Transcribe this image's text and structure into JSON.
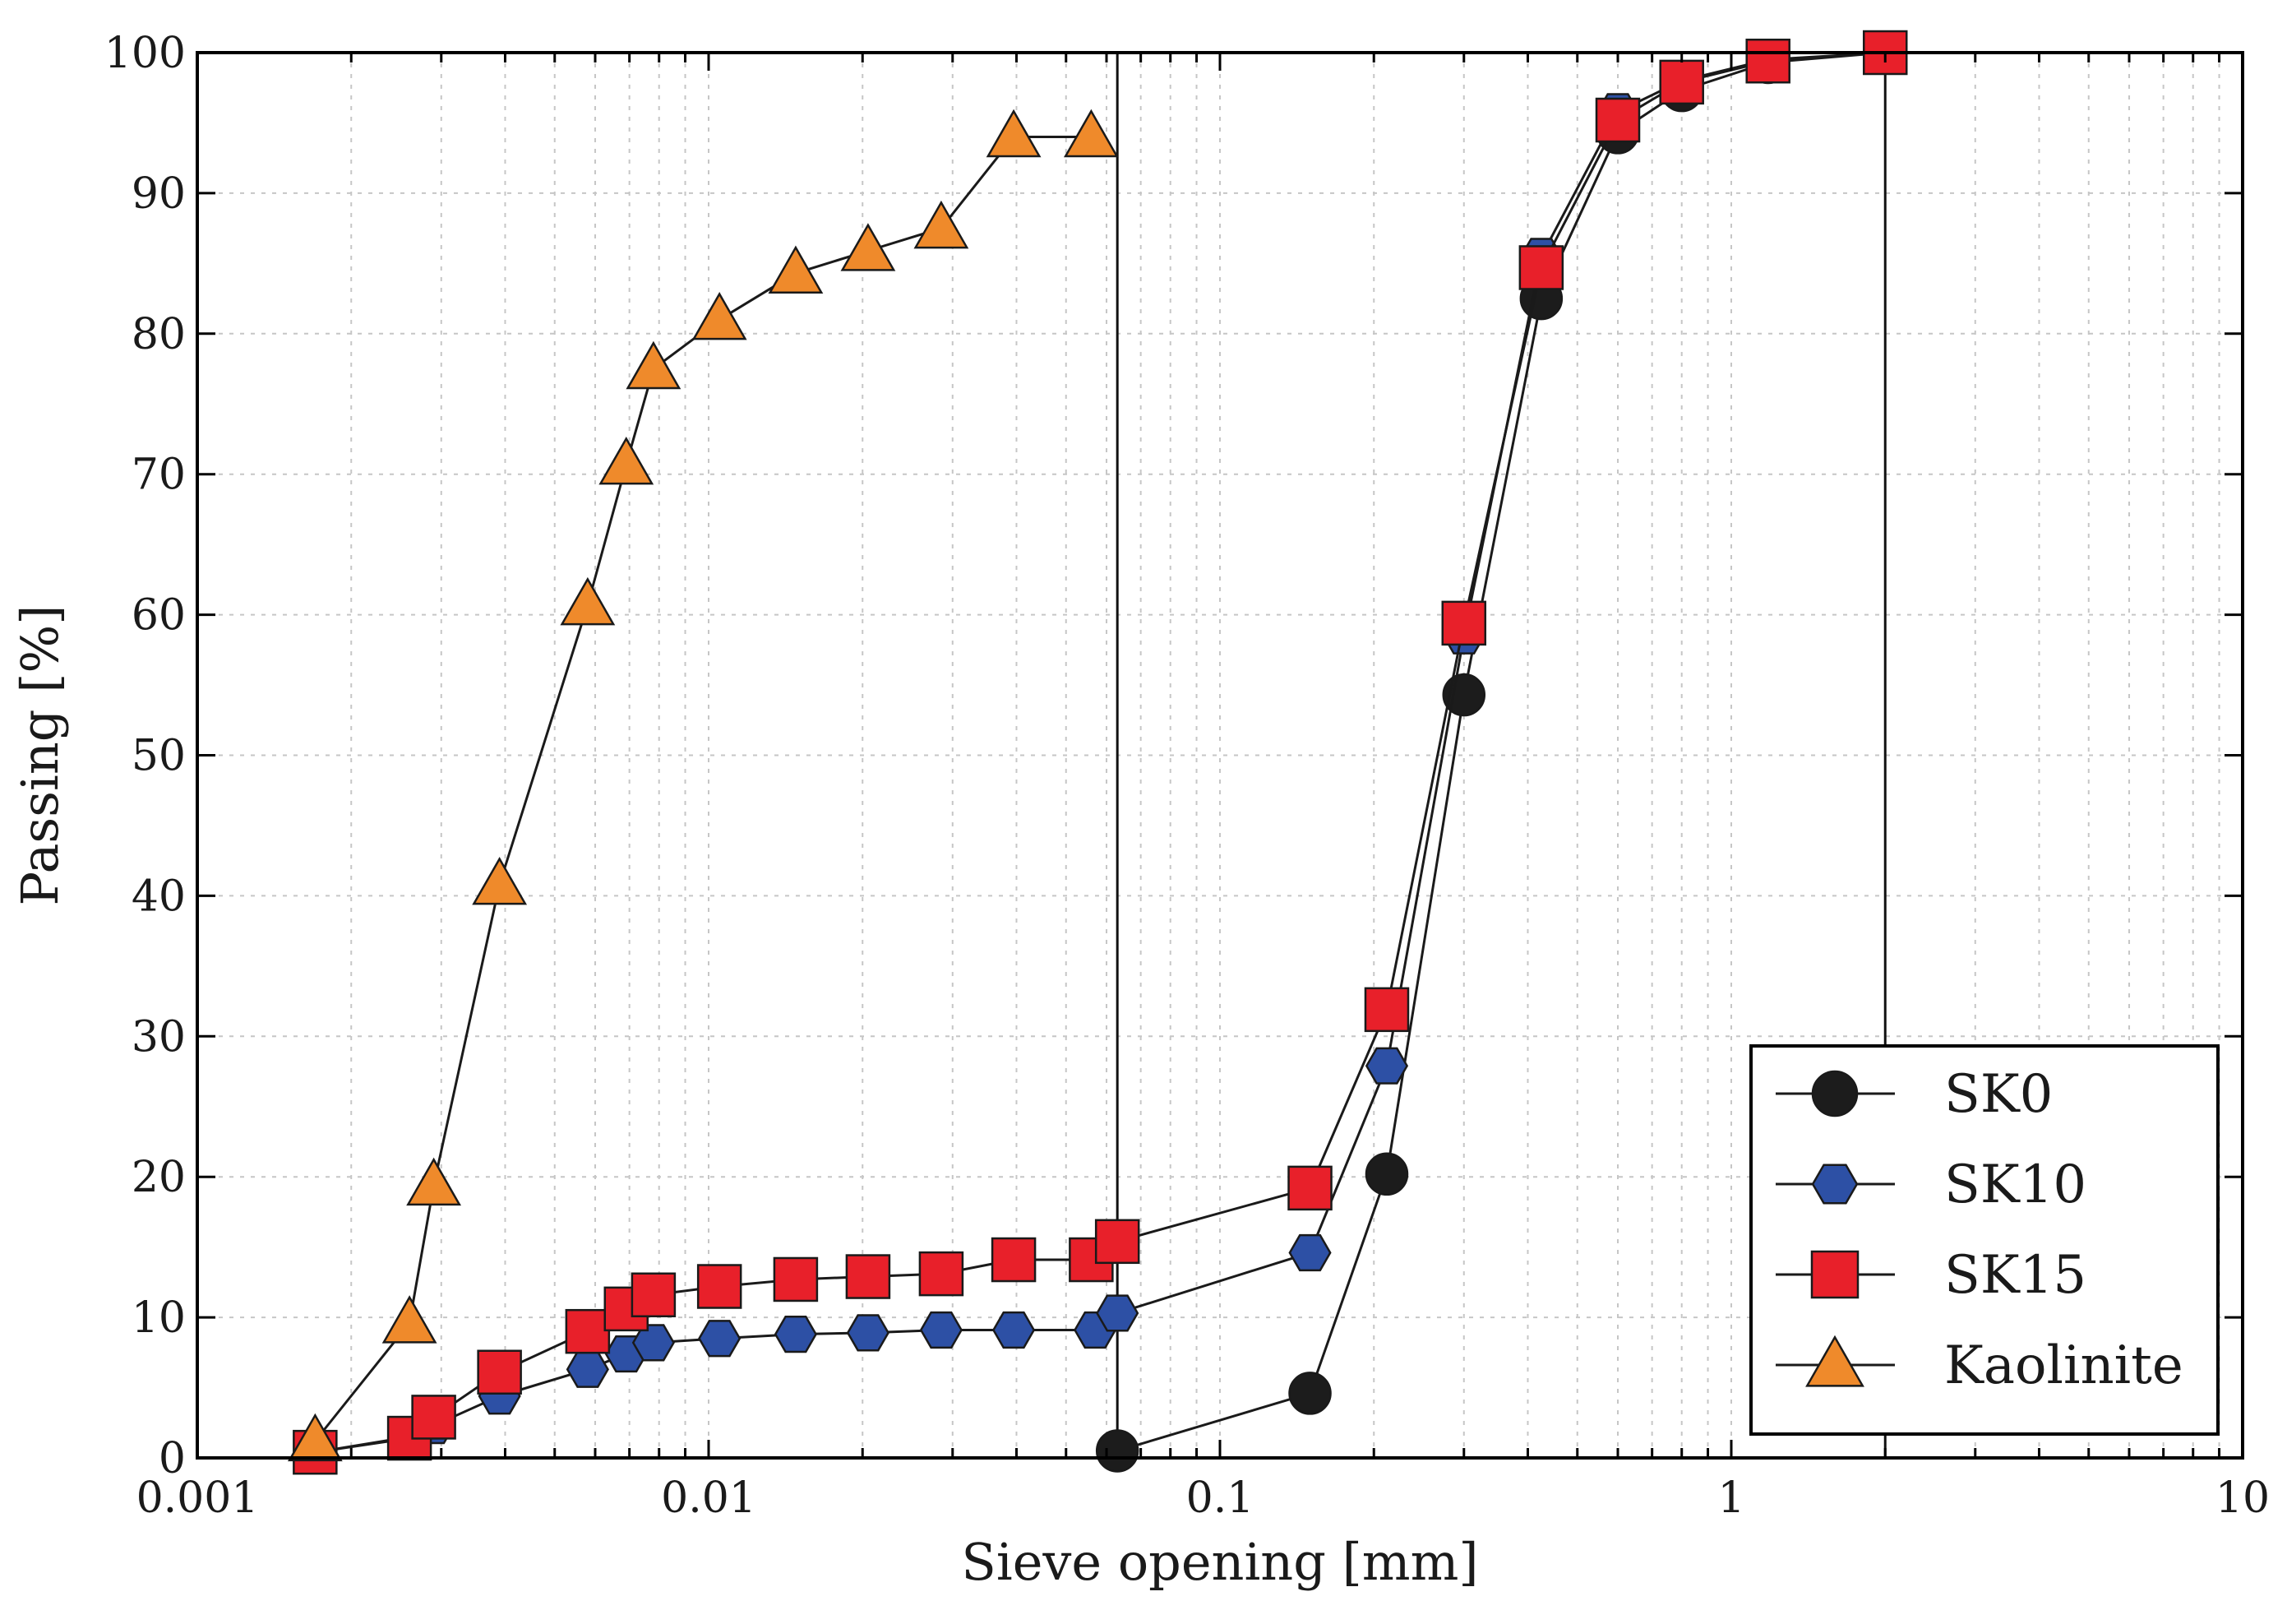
{
  "chart_data": {
    "type": "line",
    "xscale": "log",
    "xlabel": "Sieve opening [mm]",
    "ylabel": "Passing [%]",
    "xlim": [
      0.001,
      10
    ],
    "ylim": [
      0,
      100
    ],
    "grid": true,
    "x_ticks": [
      {
        "value": 0.001,
        "label": "0.001"
      },
      {
        "value": 0.01,
        "label": "0.01"
      },
      {
        "value": 0.1,
        "label": "0.1"
      },
      {
        "value": 1,
        "label": "1"
      },
      {
        "value": 10,
        "label": "10"
      }
    ],
    "y_ticks": [
      {
        "value": 0,
        "label": "0"
      },
      {
        "value": 10,
        "label": "10"
      },
      {
        "value": 20,
        "label": "20"
      },
      {
        "value": 30,
        "label": "30"
      },
      {
        "value": 40,
        "label": "40"
      },
      {
        "value": 50,
        "label": "50"
      },
      {
        "value": 60,
        "label": "60"
      },
      {
        "value": 70,
        "label": "70"
      },
      {
        "value": 80,
        "label": "80"
      },
      {
        "value": 90,
        "label": "90"
      },
      {
        "value": 100,
        "label": "100"
      }
    ],
    "reference_lines_x": [
      0.063,
      2.0
    ],
    "legend_position": "lower-right",
    "series": [
      {
        "name": "SK0",
        "marker": "circle",
        "color": "#1c1c1c",
        "points": [
          [
            0.063,
            0.5
          ],
          [
            0.15,
            4.6
          ],
          [
            0.212,
            20.2
          ],
          [
            0.3,
            54.3
          ],
          [
            0.425,
            82.5
          ],
          [
            0.6,
            94.3
          ],
          [
            0.8,
            97.3
          ],
          [
            1.18,
            99.3
          ],
          [
            2.0,
            100
          ]
        ]
      },
      {
        "name": "SK10",
        "marker": "hexagon",
        "color": "#2d50a5",
        "points": [
          [
            0.0017,
            0.4
          ],
          [
            0.0026,
            1.5
          ],
          [
            0.0029,
            2.3
          ],
          [
            0.0039,
            4.4
          ],
          [
            0.0058,
            6.3
          ],
          [
            0.0069,
            7.4
          ],
          [
            0.0078,
            8.2
          ],
          [
            0.0105,
            8.5
          ],
          [
            0.0148,
            8.8
          ],
          [
            0.0205,
            8.9
          ],
          [
            0.0285,
            9.1
          ],
          [
            0.0395,
            9.1
          ],
          [
            0.057,
            9.1
          ],
          [
            0.063,
            10.3
          ],
          [
            0.15,
            14.6
          ],
          [
            0.212,
            27.9
          ],
          [
            0.3,
            58.5
          ],
          [
            0.425,
            85.5
          ],
          [
            0.6,
            95.8
          ],
          [
            0.8,
            98.0
          ],
          [
            1.18,
            99.5
          ],
          [
            2.0,
            100
          ]
        ]
      },
      {
        "name": "SK15",
        "marker": "square",
        "color": "#e8202a",
        "points": [
          [
            0.0017,
            0.4
          ],
          [
            0.0026,
            1.4
          ],
          [
            0.0029,
            2.9
          ],
          [
            0.0039,
            6.1
          ],
          [
            0.0058,
            9.0
          ],
          [
            0.0069,
            10.6
          ],
          [
            0.0078,
            11.6
          ],
          [
            0.0105,
            12.2
          ],
          [
            0.0148,
            12.7
          ],
          [
            0.0205,
            12.9
          ],
          [
            0.0285,
            13.1
          ],
          [
            0.0395,
            14.1
          ],
          [
            0.056,
            14.1
          ],
          [
            0.063,
            15.4
          ],
          [
            0.15,
            19.2
          ],
          [
            0.212,
            31.9
          ],
          [
            0.3,
            59.4
          ],
          [
            0.425,
            84.7
          ],
          [
            0.6,
            95.2
          ],
          [
            0.8,
            97.9
          ],
          [
            1.18,
            99.4
          ],
          [
            2.0,
            100
          ]
        ]
      },
      {
        "name": "Kaolinite",
        "marker": "triangle",
        "color": "#ef8a2b",
        "points": [
          [
            0.0017,
            1.2
          ],
          [
            0.0026,
            9.6
          ],
          [
            0.0029,
            19.4
          ],
          [
            0.0039,
            40.8
          ],
          [
            0.0058,
            60.7
          ],
          [
            0.0069,
            70.7
          ],
          [
            0.0078,
            77.5
          ],
          [
            0.0105,
            81.0
          ],
          [
            0.0148,
            84.3
          ],
          [
            0.0205,
            85.9
          ],
          [
            0.0285,
            87.5
          ],
          [
            0.0395,
            94.0
          ],
          [
            0.056,
            94.0
          ]
        ]
      }
    ]
  }
}
